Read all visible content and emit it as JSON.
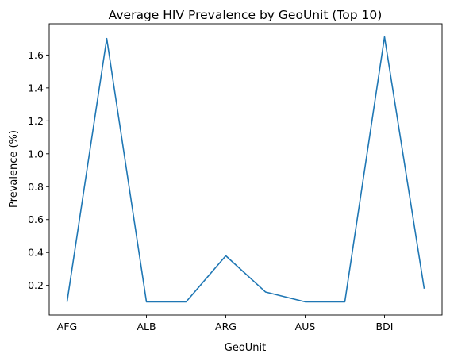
{
  "chart_data": {
    "type": "line",
    "title": "Average HIV Prevalence by GeoUnit (Top 10)",
    "xlabel": "GeoUnit",
    "ylabel": "Prevalence (%)",
    "x_tick_labels": [
      "AFG",
      "ALB",
      "ARG",
      "AUS",
      "BDI"
    ],
    "series": [
      {
        "values": [
          0.1,
          1.7,
          0.1,
          0.1,
          0.38,
          0.16,
          0.1,
          0.1,
          1.71,
          0.18
        ]
      }
    ],
    "y_ticks": [
      0.2,
      0.4,
      0.6,
      0.8,
      1.0,
      1.2,
      1.4,
      1.6
    ],
    "y_tick_labels": [
      "0.2",
      "0.4",
      "0.6",
      "0.8",
      "1.0",
      "1.2",
      "1.4",
      "1.6"
    ],
    "ylim": [
      0.02,
      1.79
    ],
    "grid": false,
    "line_color": "#1f77b4"
  }
}
